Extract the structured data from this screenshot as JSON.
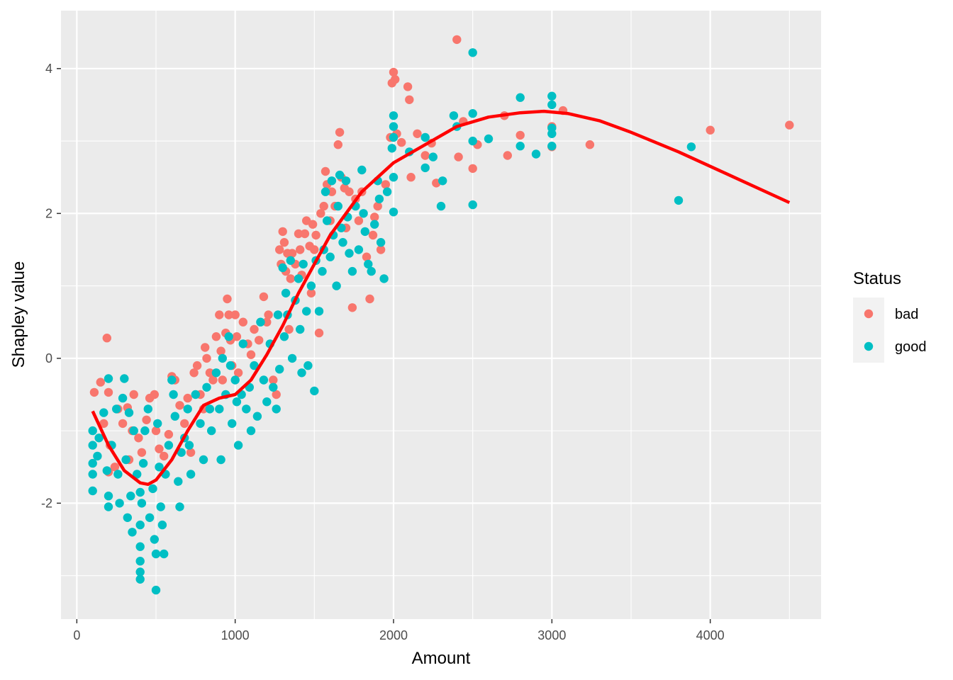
{
  "chart_data": {
    "type": "scatter",
    "title": "",
    "xlabel": "Amount",
    "ylabel": "Shapley value",
    "xlim": [
      -100,
      4700
    ],
    "ylim": [
      -3.6,
      4.8
    ],
    "x_ticks": [
      0,
      1000,
      2000,
      3000,
      4000
    ],
    "x_tick_labels": [
      "0",
      "1000",
      "2000",
      "3000",
      "4000"
    ],
    "y_ticks": [
      -2,
      0,
      2,
      4
    ],
    "y_tick_labels": [
      "-2",
      "0",
      "2",
      "4"
    ],
    "grid": true,
    "legend": {
      "title": "Status",
      "position": "right"
    },
    "series": [
      {
        "name": "bad",
        "color": "#F8766D",
        "points": [
          [
            190,
            0.28
          ],
          [
            150,
            -0.33
          ],
          [
            110,
            -0.47
          ],
          [
            200,
            -0.47
          ],
          [
            170,
            -0.9
          ],
          [
            210,
            -1.2
          ],
          [
            240,
            -1.5
          ],
          [
            200,
            -1.57
          ],
          [
            260,
            -0.7
          ],
          [
            290,
            -0.9
          ],
          [
            320,
            -0.68
          ],
          [
            350,
            -1.0
          ],
          [
            330,
            -1.4
          ],
          [
            360,
            -0.5
          ],
          [
            390,
            -1.1
          ],
          [
            410,
            -1.3
          ],
          [
            440,
            -0.85
          ],
          [
            460,
            -0.55
          ],
          [
            490,
            -0.5
          ],
          [
            500,
            -1.0
          ],
          [
            520,
            -1.25
          ],
          [
            550,
            -1.35
          ],
          [
            580,
            -1.05
          ],
          [
            600,
            -0.25
          ],
          [
            620,
            -0.3
          ],
          [
            650,
            -0.65
          ],
          [
            680,
            -0.9
          ],
          [
            700,
            -0.55
          ],
          [
            720,
            -1.3
          ],
          [
            740,
            -0.2
          ],
          [
            760,
            -0.1
          ],
          [
            780,
            -0.5
          ],
          [
            800,
            -0.7
          ],
          [
            810,
            0.15
          ],
          [
            820,
            0.0
          ],
          [
            840,
            -0.2
          ],
          [
            860,
            -0.3
          ],
          [
            880,
            0.3
          ],
          [
            900,
            0.6
          ],
          [
            910,
            0.1
          ],
          [
            920,
            -0.3
          ],
          [
            940,
            0.35
          ],
          [
            950,
            0.82
          ],
          [
            960,
            0.6
          ],
          [
            970,
            0.25
          ],
          [
            980,
            -0.1
          ],
          [
            1000,
            0.6
          ],
          [
            1010,
            0.3
          ],
          [
            1020,
            -0.2
          ],
          [
            1050,
            0.5
          ],
          [
            1080,
            0.2
          ],
          [
            1100,
            0.05
          ],
          [
            1120,
            0.4
          ],
          [
            1150,
            0.25
          ],
          [
            1180,
            0.85
          ],
          [
            1200,
            0.5
          ],
          [
            1210,
            0.6
          ],
          [
            1240,
            -0.3
          ],
          [
            1260,
            -0.5
          ],
          [
            1280,
            1.5
          ],
          [
            1290,
            1.3
          ],
          [
            1300,
            1.75
          ],
          [
            1310,
            1.6
          ],
          [
            1320,
            1.2
          ],
          [
            1330,
            1.45
          ],
          [
            1340,
            0.4
          ],
          [
            1350,
            1.1
          ],
          [
            1360,
            1.45
          ],
          [
            1380,
            1.3
          ],
          [
            1400,
            1.72
          ],
          [
            1410,
            1.5
          ],
          [
            1420,
            1.15
          ],
          [
            1440,
            1.72
          ],
          [
            1450,
            1.9
          ],
          [
            1470,
            1.55
          ],
          [
            1480,
            0.9
          ],
          [
            1490,
            1.85
          ],
          [
            1500,
            1.5
          ],
          [
            1510,
            1.7
          ],
          [
            1530,
            0.35
          ],
          [
            1540,
            2.0
          ],
          [
            1560,
            2.1
          ],
          [
            1570,
            2.58
          ],
          [
            1580,
            2.4
          ],
          [
            1600,
            1.9
          ],
          [
            1610,
            2.3
          ],
          [
            1630,
            2.1
          ],
          [
            1650,
            2.95
          ],
          [
            1660,
            3.12
          ],
          [
            1670,
            2.5
          ],
          [
            1690,
            2.35
          ],
          [
            1700,
            1.8
          ],
          [
            1720,
            2.3
          ],
          [
            1740,
            0.7
          ],
          [
            1760,
            2.2
          ],
          [
            1780,
            1.9
          ],
          [
            1800,
            2.3
          ],
          [
            1830,
            1.4
          ],
          [
            1850,
            0.82
          ],
          [
            1870,
            1.7
          ],
          [
            1880,
            1.95
          ],
          [
            1900,
            2.1
          ],
          [
            1920,
            1.5
          ],
          [
            1950,
            2.4
          ],
          [
            1980,
            3.05
          ],
          [
            1990,
            3.8
          ],
          [
            2000,
            3.95
          ],
          [
            2010,
            3.85
          ],
          [
            2020,
            3.1
          ],
          [
            2050,
            2.98
          ],
          [
            2090,
            3.75
          ],
          [
            2100,
            3.57
          ],
          [
            2110,
            2.5
          ],
          [
            2150,
            3.1
          ],
          [
            2200,
            2.8
          ],
          [
            2240,
            2.97
          ],
          [
            2270,
            2.42
          ],
          [
            2400,
            4.4
          ],
          [
            2410,
            2.78
          ],
          [
            2440,
            3.27
          ],
          [
            2500,
            2.62
          ],
          [
            2530,
            2.95
          ],
          [
            2700,
            3.35
          ],
          [
            2720,
            2.8
          ],
          [
            2800,
            3.08
          ],
          [
            3000,
            2.92
          ],
          [
            3000,
            3.2
          ],
          [
            3070,
            3.42
          ],
          [
            3240,
            2.95
          ],
          [
            4000,
            3.15
          ],
          [
            4500,
            3.22
          ]
        ]
      },
      {
        "name": "good",
        "color": "#00BFC4",
        "points": [
          [
            100,
            -1.0
          ],
          [
            100,
            -1.2
          ],
          [
            100,
            -1.45
          ],
          [
            100,
            -1.6
          ],
          [
            100,
            -1.83
          ],
          [
            130,
            -1.35
          ],
          [
            140,
            -1.1
          ],
          [
            170,
            -0.75
          ],
          [
            190,
            -1.55
          ],
          [
            200,
            -1.9
          ],
          [
            200,
            -2.05
          ],
          [
            200,
            -0.28
          ],
          [
            220,
            -1.2
          ],
          [
            250,
            -0.7
          ],
          [
            260,
            -1.6
          ],
          [
            270,
            -2.0
          ],
          [
            290,
            -0.55
          ],
          [
            300,
            -0.28
          ],
          [
            310,
            -1.4
          ],
          [
            320,
            -2.2
          ],
          [
            330,
            -0.75
          ],
          [
            340,
            -1.9
          ],
          [
            350,
            -2.4
          ],
          [
            360,
            -1.0
          ],
          [
            380,
            -1.6
          ],
          [
            400,
            -1.85
          ],
          [
            400,
            -2.3
          ],
          [
            400,
            -2.6
          ],
          [
            400,
            -2.8
          ],
          [
            400,
            -2.95
          ],
          [
            400,
            -3.05
          ],
          [
            410,
            -2.0
          ],
          [
            420,
            -1.45
          ],
          [
            430,
            -1.0
          ],
          [
            450,
            -0.7
          ],
          [
            460,
            -2.2
          ],
          [
            480,
            -1.8
          ],
          [
            490,
            -2.5
          ],
          [
            500,
            -2.7
          ],
          [
            500,
            -3.2
          ],
          [
            510,
            -0.9
          ],
          [
            520,
            -1.5
          ],
          [
            530,
            -2.05
          ],
          [
            540,
            -2.3
          ],
          [
            550,
            -2.7
          ],
          [
            560,
            -1.6
          ],
          [
            580,
            -1.2
          ],
          [
            600,
            -0.3
          ],
          [
            610,
            -0.5
          ],
          [
            620,
            -0.8
          ],
          [
            640,
            -1.7
          ],
          [
            650,
            -2.05
          ],
          [
            660,
            -1.3
          ],
          [
            680,
            -1.1
          ],
          [
            700,
            -0.7
          ],
          [
            710,
            -1.2
          ],
          [
            720,
            -1.6
          ],
          [
            750,
            -0.5
          ],
          [
            780,
            -0.9
          ],
          [
            800,
            -1.4
          ],
          [
            820,
            -0.4
          ],
          [
            840,
            -0.7
          ],
          [
            850,
            -1.0
          ],
          [
            880,
            -0.2
          ],
          [
            900,
            -0.7
          ],
          [
            910,
            -1.4
          ],
          [
            920,
            0.0
          ],
          [
            940,
            -0.5
          ],
          [
            960,
            0.3
          ],
          [
            970,
            -0.1
          ],
          [
            980,
            -0.9
          ],
          [
            1000,
            -0.3
          ],
          [
            1010,
            -0.6
          ],
          [
            1020,
            -1.2
          ],
          [
            1040,
            -0.5
          ],
          [
            1050,
            0.2
          ],
          [
            1070,
            -0.7
          ],
          [
            1090,
            -0.4
          ],
          [
            1100,
            -1.0
          ],
          [
            1120,
            -0.1
          ],
          [
            1140,
            -0.8
          ],
          [
            1160,
            0.5
          ],
          [
            1180,
            -0.3
          ],
          [
            1200,
            -0.6
          ],
          [
            1220,
            0.2
          ],
          [
            1240,
            -0.4
          ],
          [
            1260,
            -0.7
          ],
          [
            1270,
            0.6
          ],
          [
            1280,
            -0.15
          ],
          [
            1300,
            1.25
          ],
          [
            1310,
            0.3
          ],
          [
            1320,
            0.9
          ],
          [
            1330,
            0.6
          ],
          [
            1350,
            1.35
          ],
          [
            1360,
            0.0
          ],
          [
            1380,
            0.8
          ],
          [
            1400,
            1.1
          ],
          [
            1410,
            0.4
          ],
          [
            1420,
            -0.2
          ],
          [
            1430,
            1.3
          ],
          [
            1450,
            0.65
          ],
          [
            1460,
            -0.1
          ],
          [
            1480,
            1.0
          ],
          [
            1500,
            -0.45
          ],
          [
            1510,
            1.35
          ],
          [
            1530,
            0.65
          ],
          [
            1550,
            1.2
          ],
          [
            1560,
            1.5
          ],
          [
            1570,
            2.3
          ],
          [
            1580,
            1.9
          ],
          [
            1600,
            1.4
          ],
          [
            1610,
            2.45
          ],
          [
            1620,
            1.7
          ],
          [
            1640,
            1.0
          ],
          [
            1650,
            2.1
          ],
          [
            1660,
            2.53
          ],
          [
            1670,
            1.8
          ],
          [
            1680,
            1.6
          ],
          [
            1700,
            2.45
          ],
          [
            1710,
            1.95
          ],
          [
            1720,
            1.45
          ],
          [
            1740,
            1.2
          ],
          [
            1760,
            2.1
          ],
          [
            1780,
            1.5
          ],
          [
            1800,
            2.6
          ],
          [
            1810,
            2.0
          ],
          [
            1820,
            1.75
          ],
          [
            1840,
            1.3
          ],
          [
            1860,
            1.2
          ],
          [
            1880,
            1.85
          ],
          [
            1900,
            2.45
          ],
          [
            1910,
            2.2
          ],
          [
            1920,
            1.6
          ],
          [
            1940,
            1.1
          ],
          [
            1960,
            2.3
          ],
          [
            1990,
            2.9
          ],
          [
            2000,
            3.2
          ],
          [
            2000,
            3.35
          ],
          [
            2000,
            3.05
          ],
          [
            2000,
            2.5
          ],
          [
            2000,
            2.02
          ],
          [
            2100,
            2.85
          ],
          [
            2200,
            3.05
          ],
          [
            2200,
            2.63
          ],
          [
            2250,
            2.78
          ],
          [
            2300,
            2.1
          ],
          [
            2310,
            2.45
          ],
          [
            2380,
            3.35
          ],
          [
            2400,
            3.2
          ],
          [
            2500,
            4.22
          ],
          [
            2500,
            3.38
          ],
          [
            2500,
            3.0
          ],
          [
            2500,
            2.12
          ],
          [
            2600,
            3.03
          ],
          [
            2800,
            3.6
          ],
          [
            2800,
            2.93
          ],
          [
            2900,
            2.82
          ],
          [
            3000,
            3.62
          ],
          [
            3000,
            3.5
          ],
          [
            3000,
            3.18
          ],
          [
            3000,
            3.1
          ],
          [
            3000,
            2.93
          ],
          [
            3800,
            2.18
          ],
          [
            3880,
            2.92
          ]
        ]
      }
    ],
    "smooth": {
      "color": "#FF0000",
      "x": [
        100,
        200,
        300,
        400,
        450,
        500,
        600,
        700,
        800,
        900,
        1000,
        1100,
        1200,
        1300,
        1400,
        1500,
        1600,
        1700,
        1800,
        1900,
        2000,
        2200,
        2400,
        2600,
        2800,
        2950,
        3100,
        3300,
        3500,
        3800,
        4100,
        4500
      ],
      "y": [
        -0.73,
        -1.2,
        -1.55,
        -1.72,
        -1.74,
        -1.68,
        -1.4,
        -1.0,
        -0.65,
        -0.55,
        -0.5,
        -0.3,
        0.05,
        0.45,
        0.9,
        1.3,
        1.7,
        2.0,
        2.3,
        2.5,
        2.7,
        2.95,
        3.2,
        3.33,
        3.39,
        3.41,
        3.38,
        3.28,
        3.12,
        2.85,
        2.55,
        2.15
      ]
    }
  }
}
